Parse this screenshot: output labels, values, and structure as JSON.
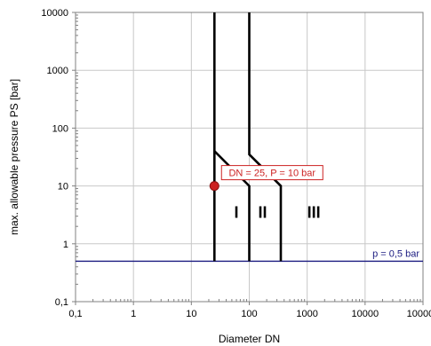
{
  "chart_data": {
    "type": "line",
    "xlabel": "Diameter DN",
    "ylabel": "max. allowable pressure PS [bar]",
    "xscale": "log",
    "yscale": "log",
    "xlim": [
      0.1,
      100000
    ],
    "ylim": [
      0.1,
      10000
    ],
    "grid": true,
    "x_ticks": [
      {
        "value": 0.1,
        "label": "0,1"
      },
      {
        "value": 1,
        "label": "1"
      },
      {
        "value": 10,
        "label": "10"
      },
      {
        "value": 100,
        "label": "100"
      },
      {
        "value": 1000,
        "label": "1000"
      },
      {
        "value": 10000,
        "label": "10000"
      },
      {
        "value": 100000,
        "label": "100000"
      }
    ],
    "y_ticks": [
      {
        "value": 0.1,
        "label": "0,1"
      },
      {
        "value": 1,
        "label": "1"
      },
      {
        "value": 10,
        "label": "10"
      },
      {
        "value": 100,
        "label": "100"
      },
      {
        "value": 1000,
        "label": "1000"
      },
      {
        "value": 10000,
        "label": "10000"
      }
    ],
    "boundaries": [
      {
        "x": [
          25,
          25,
          25,
          100,
          100
        ],
        "y": [
          0.5,
          40,
          40,
          10,
          0.5
        ],
        "color": "#000000"
      },
      {
        "x": [
          25,
          25
        ],
        "y": [
          40,
          10000
        ],
        "color": "#000000"
      },
      {
        "x": [
          100,
          100,
          100,
          350,
          350
        ],
        "y": [
          10000,
          35,
          35,
          10,
          0.5
        ],
        "color": "#000000"
      }
    ],
    "reference_line": {
      "y": 0.5,
      "label": "p = 0,5 bar",
      "color": "#1a1a80"
    },
    "zones": [
      {
        "label": "I",
        "x": 60,
        "y": 2.8
      },
      {
        "label": "II",
        "x": 170,
        "y": 2.8
      },
      {
        "label": "III",
        "x": 1300,
        "y": 2.8
      }
    ],
    "point": {
      "x": 25,
      "y": 10,
      "label": "DN = 25, P = 10 bar",
      "color": "#cc2222"
    }
  }
}
